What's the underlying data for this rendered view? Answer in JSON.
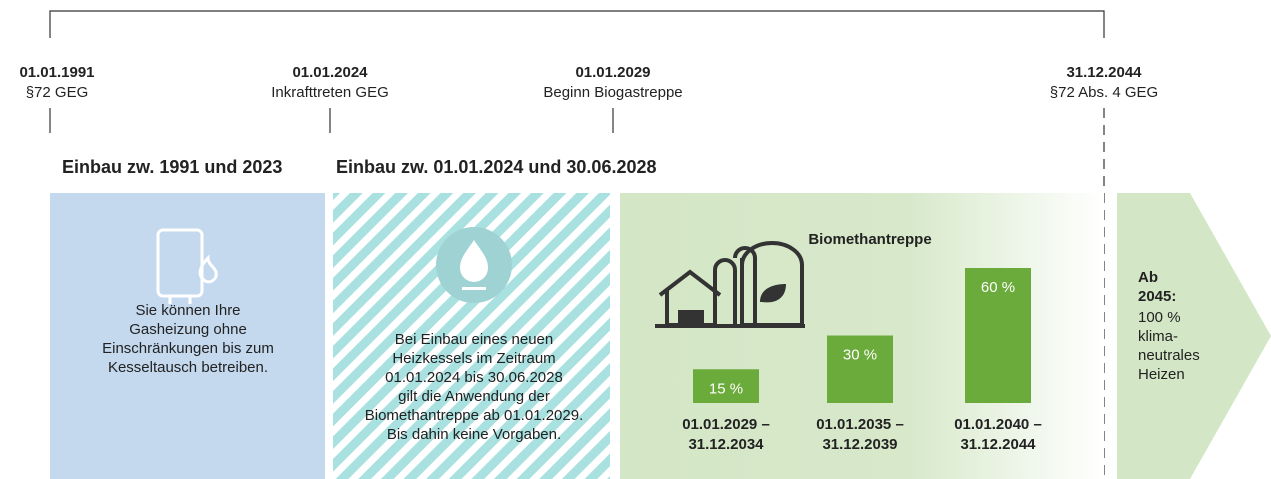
{
  "timeline": {
    "milestones": [
      {
        "date": "01.01.1991",
        "label": "§72 GEG"
      },
      {
        "date": "01.01.2024",
        "label": "Inkrafttreten GEG"
      },
      {
        "date": "01.01.2029",
        "label": "Beginn Biogastreppe"
      },
      {
        "date": "31.12.2044",
        "label": "§72 Abs. 4 GEG"
      }
    ]
  },
  "sections": [
    {
      "heading": "Einbau zw. 1991 und 2023",
      "text": [
        "Sie können Ihre",
        "Gasheizung ohne",
        "Einschränkungen bis zum",
        "Kesseltausch betreiben."
      ]
    },
    {
      "heading": "Einbau zw. 01.01.2024 und 30.06.2028",
      "text": [
        "Bei Einbau eines neuen",
        "Heizkessels im Zeitraum",
        "01.01.2024 bis 30.06.2028",
        "gilt die Anwendung der",
        "Biomethantreppe ab 01.01.2029.",
        "Bis dahin keine Vorgaben."
      ]
    }
  ],
  "biomethane": {
    "title": "Biomethantreppe",
    "steps": [
      {
        "value": 15,
        "value_label": "15 %",
        "from": "01.01.2029 –",
        "to": "31.12.2034"
      },
      {
        "value": 30,
        "value_label": "30 %",
        "from": "01.01.2035 –",
        "to": "31.12.2039"
      },
      {
        "value": 60,
        "value_label": "60 %",
        "from": "01.01.2040 –",
        "to": "31.12.2044"
      }
    ]
  },
  "final": {
    "heading": [
      "Ab",
      "2045:"
    ],
    "text": [
      "100 %",
      "klima-",
      "neutrales",
      "Heizen"
    ]
  }
}
